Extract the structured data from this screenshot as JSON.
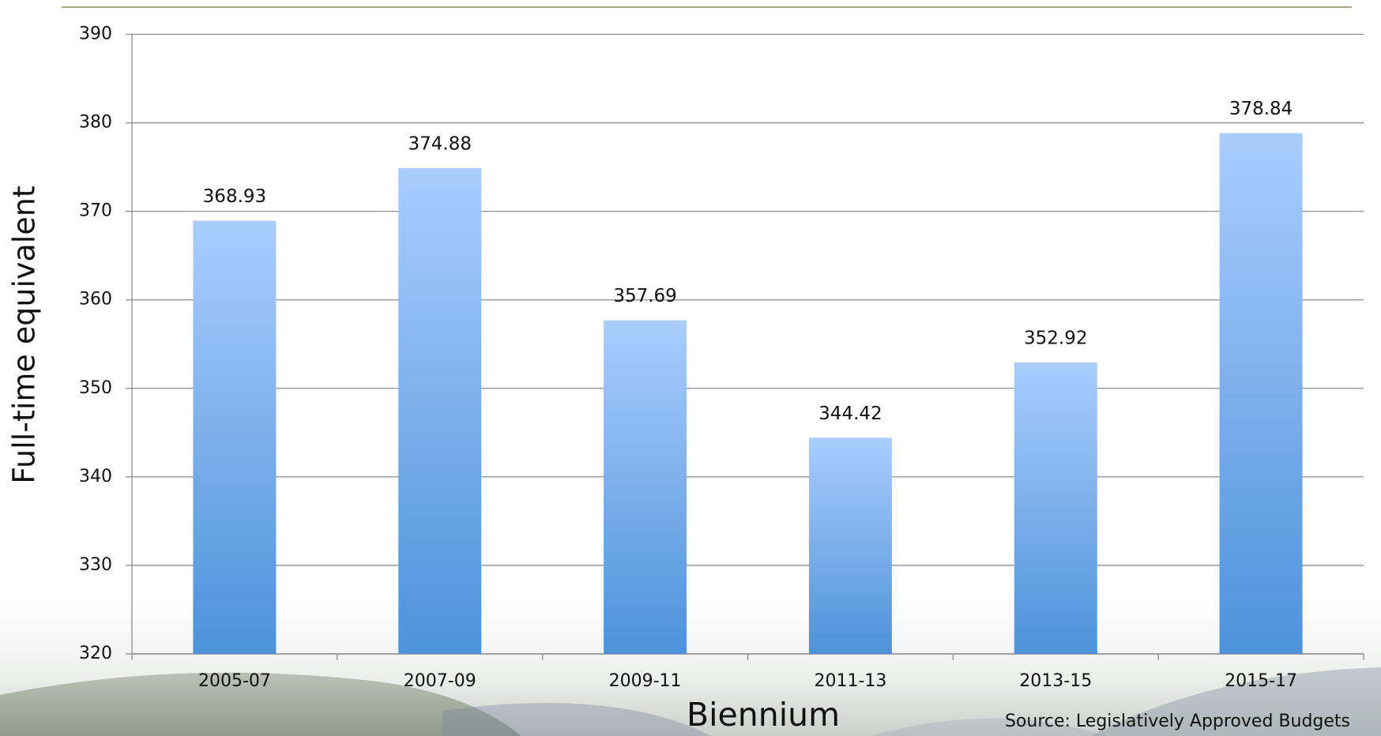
{
  "chart_data": {
    "type": "bar",
    "categories": [
      "2005-07",
      "2007-09",
      "2009-11",
      "2011-13",
      "2013-15",
      "2015-17"
    ],
    "values": [
      368.93,
      374.88,
      357.69,
      344.42,
      352.92,
      378.84
    ],
    "gradient": [
      "#aacdfd",
      "#4d92da"
    ],
    "x_label": "Biennium",
    "y_label": "Full-time equivalent",
    "source": "Source: Legislatively Approved Budgets",
    "ylim": [
      320,
      390
    ],
    "yticks": [
      320,
      330,
      340,
      350,
      360,
      370,
      380,
      390
    ],
    "grid": true
  }
}
